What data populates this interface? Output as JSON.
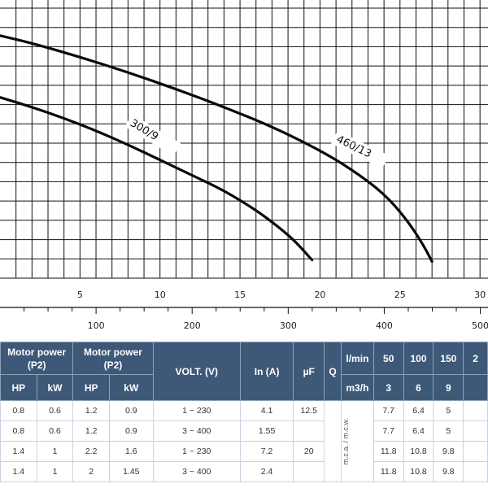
{
  "chart_data": {
    "type": "line",
    "x": {
      "ticks": [
        5,
        10,
        15,
        20,
        25,
        30
      ],
      "range": [
        0,
        30.5
      ]
    },
    "x2": {
      "ticks": [
        100,
        200,
        300,
        400,
        500
      ],
      "range": [
        0,
        508
      ]
    },
    "ylim": [
      0,
      1
    ],
    "grid": true,
    "series": [
      {
        "name": "460/13",
        "points": [
          [
            0,
            0.872
          ],
          [
            2,
            0.845
          ],
          [
            5,
            0.795
          ],
          [
            8,
            0.74
          ],
          [
            11,
            0.68
          ],
          [
            14,
            0.615
          ],
          [
            17,
            0.545
          ],
          [
            20,
            0.46
          ],
          [
            22,
            0.39
          ],
          [
            24,
            0.305
          ],
          [
            25.5,
            0.205
          ],
          [
            26.5,
            0.115
          ],
          [
            27,
            0.06
          ]
        ]
      },
      {
        "name": "300/9",
        "points": [
          [
            0,
            0.65
          ],
          [
            2,
            0.615
          ],
          [
            4,
            0.575
          ],
          [
            6,
            0.53
          ],
          [
            8,
            0.48
          ],
          [
            10,
            0.425
          ],
          [
            12,
            0.37
          ],
          [
            14,
            0.315
          ],
          [
            16,
            0.245
          ],
          [
            17.5,
            0.18
          ],
          [
            18.5,
            0.13
          ],
          [
            19.5,
            0.065
          ]
        ]
      }
    ]
  },
  "table": {
    "header": {
      "motor_power_1": "Motor power (P2)",
      "motor_power_2": "Motor power (P2)",
      "volt": "VOLT. (V)",
      "in": "In (A)",
      "uf": "µF",
      "q": "Q",
      "lmin": "l/min",
      "m3h": "m3/h",
      "hp_1": "HP",
      "kw_1": "kW",
      "hp_2": "HP",
      "kw_2": "kW",
      "flow_lmin": [
        "50",
        "100",
        "150",
        "2"
      ],
      "flow_m3h": [
        "3",
        "6",
        "9"
      ]
    },
    "mca_label": "m.c.a. / m.c.w.",
    "rows": [
      {
        "hp1": "0.8",
        "kw1": "0.6",
        "hp2": "1.2",
        "kw2": "0.9",
        "volt": "1 ~ 230",
        "in": "4.1",
        "uf": "12.5",
        "h1": "7.7",
        "h2": "6.4",
        "h3": "5"
      },
      {
        "hp1": "0.8",
        "kw1": "0.6",
        "hp2": "1.2",
        "kw2": "0.9",
        "volt": "3 ~ 400",
        "in": "1.55",
        "uf": "",
        "h1": "7.7",
        "h2": "6.4",
        "h3": "5"
      },
      {
        "hp1": "1.4",
        "kw1": "1",
        "hp2": "2.2",
        "kw2": "1.6",
        "volt": "1 ~ 230",
        "in": "7.2",
        "uf": "20",
        "h1": "11.8",
        "h2": "10.8",
        "h3": "9.8"
      },
      {
        "hp1": "1.4",
        "kw1": "1",
        "hp2": "2",
        "kw2": "1.45",
        "volt": "3 ~ 400",
        "in": "2.4",
        "uf": "",
        "h1": "11.8",
        "h2": "10.8",
        "h3": "9.8"
      }
    ]
  }
}
